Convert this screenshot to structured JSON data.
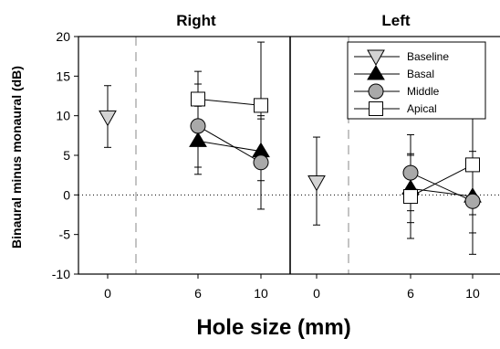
{
  "chart_data": {
    "type": "scatter",
    "ylabel": "Binaural minus monaural (dB)",
    "xlabel": "Hole size (mm)",
    "ylim": [
      -10,
      20
    ],
    "yticks": [
      -10,
      -5,
      0,
      5,
      10,
      15,
      20
    ],
    "reference_line_y": 0,
    "legend": {
      "placement": "top-right of Left panel",
      "entries": [
        {
          "key": "baseline",
          "label": "Baseline",
          "marker": "down-triangle",
          "fill": "#d3d3d3"
        },
        {
          "key": "basal",
          "label": "Basal",
          "marker": "up-triangle",
          "fill": "#000000"
        },
        {
          "key": "middle",
          "label": "Middle",
          "marker": "circle",
          "fill": "#a9a9a9"
        },
        {
          "key": "apical",
          "label": "Apical",
          "marker": "square",
          "fill": "#ffffff"
        }
      ]
    },
    "panels": [
      {
        "key": "right",
        "title": "Right",
        "xticks": [
          "0",
          "6",
          "10"
        ],
        "series": [
          {
            "key": "baseline",
            "points": [
              {
                "x": 0,
                "y": 9.8,
                "lo": 6.0,
                "hi": 13.8
              }
            ]
          },
          {
            "key": "basal",
            "points": [
              {
                "x": 6,
                "y": 6.8,
                "lo": 3.5,
                "hi": 11.2
              },
              {
                "x": 10,
                "y": 5.5,
                "lo": 1.8,
                "hi": 9.6
              }
            ]
          },
          {
            "key": "middle",
            "points": [
              {
                "x": 6,
                "y": 8.7,
                "lo": 2.6,
                "hi": 14.0
              },
              {
                "x": 10,
                "y": 4.1,
                "lo": -1.8,
                "hi": 10.0
              }
            ]
          },
          {
            "key": "apical",
            "points": [
              {
                "x": 6,
                "y": 12.1,
                "lo": 7.0,
                "hi": 15.6
              },
              {
                "x": 10,
                "y": 11.3,
                "lo": 3.5,
                "hi": 19.3
              }
            ]
          }
        ]
      },
      {
        "key": "left",
        "title": "Left",
        "xticks": [
          "0",
          "6",
          "10"
        ],
        "series": [
          {
            "key": "baseline",
            "points": [
              {
                "x": 0,
                "y": 1.6,
                "lo": -3.8,
                "hi": 7.3
              }
            ]
          },
          {
            "key": "basal",
            "points": [
              {
                "x": 6,
                "y": 0.8,
                "lo": -3.5,
                "hi": 5.0
              },
              {
                "x": 10,
                "y": -0.2,
                "lo": -4.8,
                "hi": 4.5
              }
            ]
          },
          {
            "key": "middle",
            "points": [
              {
                "x": 6,
                "y": 2.8,
                "lo": -2.0,
                "hi": 7.6
              },
              {
                "x": 10,
                "y": -0.8,
                "lo": -7.5,
                "hi": 5.5
              }
            ]
          },
          {
            "key": "apical",
            "points": [
              {
                "x": 6,
                "y": -0.2,
                "lo": -5.5,
                "hi": 5.2
              },
              {
                "x": 10,
                "y": 3.8,
                "lo": -2.5,
                "hi": 10.3
              }
            ]
          }
        ]
      }
    ]
  }
}
